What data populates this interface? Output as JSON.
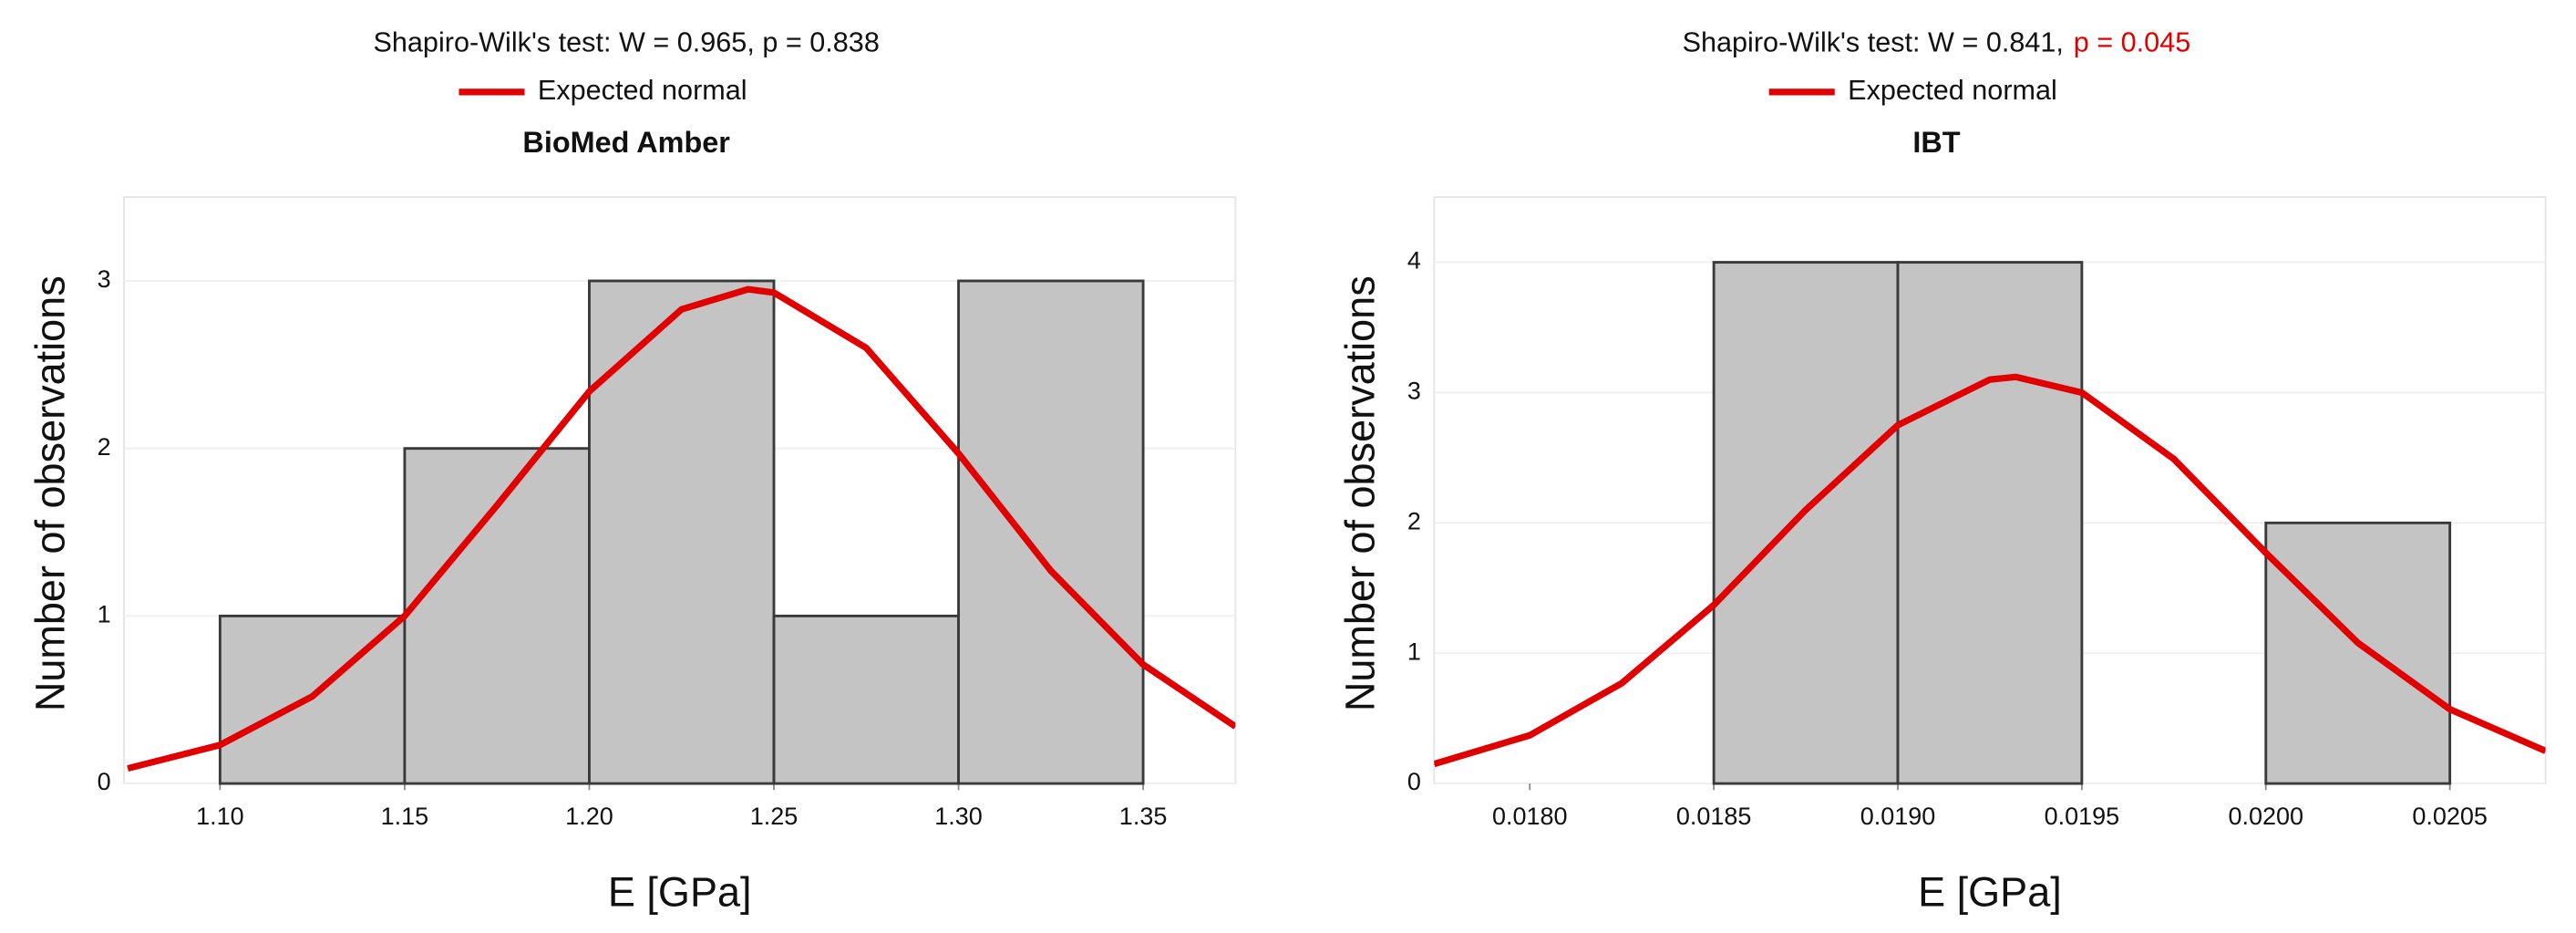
{
  "chart_data": [
    {
      "type": "histogram",
      "subtitle_parts": [
        {
          "text": "Shapiro-Wilk's test: W = 0.965, p = 0.838",
          "color": "#111111"
        }
      ],
      "title": "BioMed Amber",
      "xlabel": "E [GPa]",
      "ylabel": "Number of observations",
      "bins": [
        1.1,
        1.15,
        1.2,
        1.25,
        1.3,
        1.35
      ],
      "counts": [
        1,
        2,
        3,
        1,
        3
      ],
      "bar_color": "#c4c4c4",
      "xlim": [
        1.074,
        1.375
      ],
      "xticks": [
        {
          "value": 1.1,
          "label": "1.10"
        },
        1.15,
        {
          "value": 1.2,
          "label": "1.20"
        },
        1.25,
        {
          "value": 1.3,
          "label": "1.30"
        },
        1.35
      ],
      "ylim": [
        0,
        3.5
      ],
      "yticks": [
        0,
        1,
        2,
        3
      ],
      "grid": true,
      "curve": {
        "name": "Expected normal",
        "color": "#e00000",
        "x": [
          1.075,
          1.1,
          1.125,
          1.15,
          1.175,
          1.2,
          1.225,
          1.243,
          1.25,
          1.275,
          1.3,
          1.325,
          1.35,
          1.375
        ],
        "values": [
          0.09,
          0.23,
          0.52,
          1.0,
          1.66,
          2.34,
          2.83,
          2.95,
          2.93,
          2.6,
          1.97,
          1.27,
          0.71,
          0.34
        ]
      }
    },
    {
      "type": "histogram",
      "subtitle_parts": [
        {
          "text": "Shapiro-Wilk's test: W = 0.841,",
          "color": "#111111"
        },
        {
          "text": "p = 0.045",
          "color": "#e00000"
        }
      ],
      "title": "IBT",
      "xlabel": "E [GPa]",
      "ylabel": "Number of observations",
      "bins": [
        0.018,
        0.0185,
        0.019,
        0.0195,
        0.02,
        0.0205
      ],
      "counts": [
        0,
        4,
        4,
        0,
        2
      ],
      "bar_color": "#c4c4c4",
      "xlim": [
        0.01774,
        0.02076
      ],
      "xticks": [
        {
          "value": 0.018,
          "label": "0.0180"
        },
        0.0185,
        {
          "value": 0.019,
          "label": "0.0190"
        },
        0.0195,
        {
          "value": 0.02,
          "label": "0.0200"
        },
        0.0205
      ],
      "ylim": [
        0,
        4.5
      ],
      "yticks": [
        0,
        1,
        2,
        3,
        4
      ],
      "grid": true,
      "curve": {
        "name": "Expected normal",
        "color": "#e00000",
        "x": [
          0.01774,
          0.018,
          0.01825,
          0.0185,
          0.01875,
          0.019,
          0.01925,
          0.01932,
          0.0195,
          0.01975,
          0.02,
          0.02025,
          0.0205,
          0.02076
        ],
        "values": [
          0.15,
          0.37,
          0.77,
          1.37,
          2.1,
          2.75,
          3.1,
          3.12,
          3.0,
          2.49,
          1.77,
          1.08,
          0.57,
          0.25
        ]
      }
    }
  ]
}
